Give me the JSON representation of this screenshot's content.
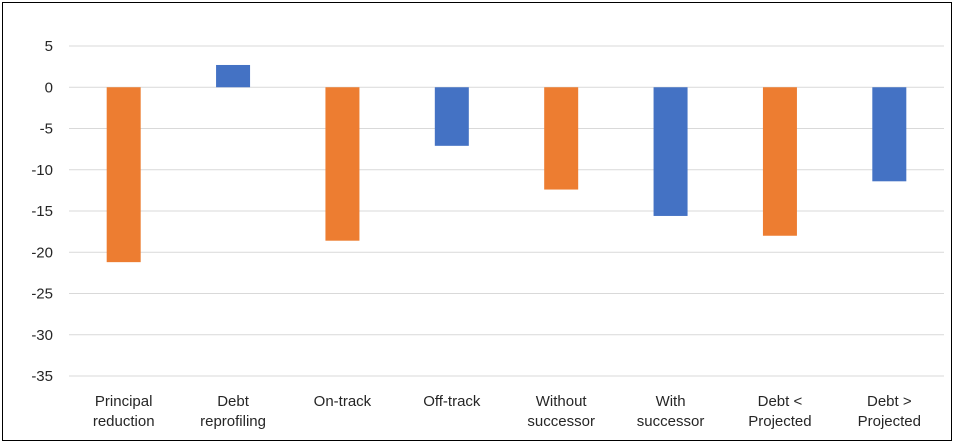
{
  "chart_data": {
    "type": "bar",
    "categories": [
      [
        "Principal",
        "reduction"
      ],
      [
        "Debt",
        "reprofiling"
      ],
      [
        "On-track"
      ],
      [
        "Off-track"
      ],
      [
        "Without",
        "successor"
      ],
      [
        "With",
        "successor"
      ],
      [
        "Debt <",
        "Projected"
      ],
      [
        "Debt >",
        "Projected"
      ]
    ],
    "values": [
      -21.2,
      2.7,
      -18.6,
      -7.1,
      -12.4,
      -15.6,
      -18.0,
      -11.4
    ],
    "bar_colors": [
      "#ED7D31",
      "#4472C4",
      "#ED7D31",
      "#4472C4",
      "#ED7D31",
      "#4472C4",
      "#ED7D31",
      "#4472C4"
    ],
    "ylim": [
      -35,
      5
    ],
    "yticks": [
      5,
      0,
      -5,
      -10,
      -15,
      -20,
      -25,
      -30,
      -35
    ],
    "grid": true,
    "title": "",
    "xlabel": "",
    "ylabel": ""
  }
}
